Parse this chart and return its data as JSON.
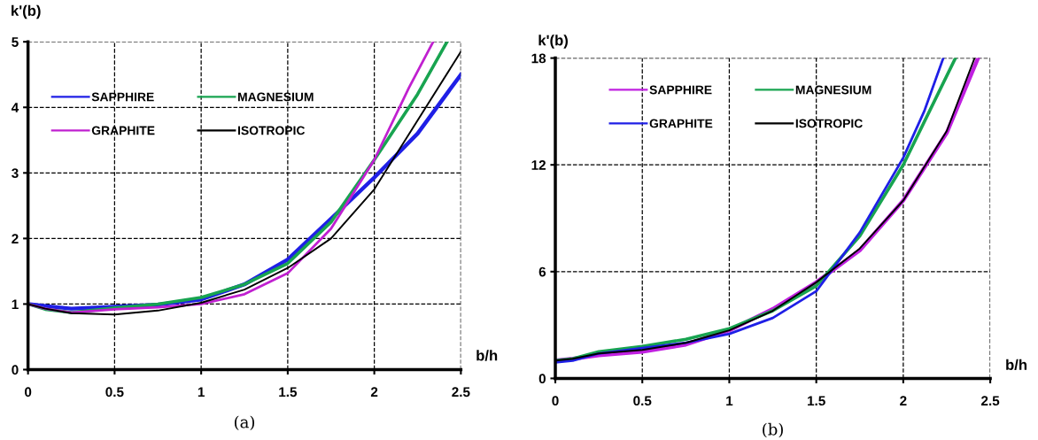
{
  "chart_data": [
    {
      "type": "line",
      "title": "(a)",
      "xlabel": "b/h",
      "ylabel": "k'(b)",
      "xlim": [
        0,
        2.5
      ],
      "ylim": [
        0,
        5
      ],
      "xticks": [
        0,
        0.5,
        1,
        1.5,
        2,
        2.5
      ],
      "yticks": [
        0,
        1,
        2,
        3,
        4,
        5
      ],
      "grid": true,
      "legend": "top left",
      "line_style": "solid",
      "marker": "none",
      "x": [
        0,
        0.1,
        0.25,
        0.5,
        0.75,
        1.0,
        1.25,
        1.5,
        1.75,
        2.0,
        2.25,
        2.5
      ],
      "series": [
        {
          "name": "SAPPHIRE",
          "color": "#1f1fe6",
          "values": [
            1,
            0.97,
            0.93,
            0.96,
            0.99,
            1.07,
            1.3,
            1.68,
            2.3,
            2.93,
            3.6,
            4.5
          ]
        },
        {
          "name": "MAGNESIUM",
          "color": "#18a450",
          "x": [
            0,
            0.1,
            0.25,
            0.5,
            0.75,
            1.0,
            1.25,
            1.5,
            1.75,
            2.0,
            2.25,
            2.42
          ],
          "values": [
            1,
            0.92,
            0.87,
            0.94,
            1.0,
            1.1,
            1.3,
            1.62,
            2.25,
            3.2,
            4.2,
            5.0
          ]
        },
        {
          "name": "GRAPHITE",
          "color": "#c020d0",
          "x": [
            0,
            0.1,
            0.25,
            0.5,
            0.75,
            1.0,
            1.25,
            1.5,
            1.75,
            2.0,
            2.2,
            2.34
          ],
          "values": [
            1,
            0.93,
            0.87,
            0.92,
            0.95,
            1.0,
            1.15,
            1.47,
            2.15,
            3.2,
            4.3,
            5.0
          ]
        },
        {
          "name": "ISOTROPIC",
          "color": "#000000",
          "values": [
            1,
            0.93,
            0.86,
            0.84,
            0.9,
            1.02,
            1.22,
            1.55,
            2.0,
            2.75,
            3.8,
            4.85
          ]
        }
      ]
    },
    {
      "type": "line",
      "title": "(b)",
      "xlabel": "b/h",
      "ylabel": "k'(b)",
      "xlim": [
        0,
        2.5
      ],
      "ylim": [
        0,
        18
      ],
      "xticks": [
        0,
        0.5,
        1,
        1.5,
        2,
        2.5
      ],
      "yticks": [
        0,
        6,
        12,
        18
      ],
      "grid": true,
      "legend": "top",
      "line_style": "solid",
      "marker": "none",
      "series": [
        {
          "name": "SAPPHIRE",
          "color": "#c020e0",
          "x": [
            0,
            0.1,
            0.25,
            0.5,
            0.75,
            1.0,
            1.25,
            1.5,
            1.75,
            2.0,
            2.25,
            2.43
          ],
          "values": [
            1.0,
            1.1,
            1.3,
            1.5,
            1.9,
            2.7,
            3.9,
            5.4,
            7.2,
            10.0,
            13.8,
            18
          ]
        },
        {
          "name": "MAGNESIUM",
          "color": "#18a450",
          "x": [
            0,
            0.1,
            0.25,
            0.5,
            0.75,
            1.0,
            1.25,
            1.5,
            1.75,
            2.0,
            2.15,
            2.3
          ],
          "values": [
            1,
            1.1,
            1.5,
            1.8,
            2.2,
            2.8,
            3.8,
            5.2,
            8.0,
            12.0,
            15.0,
            18
          ]
        },
        {
          "name": "GRAPHITE",
          "color": "#1f1fe6",
          "x": [
            0,
            0.1,
            0.25,
            0.5,
            0.75,
            1.0,
            1.25,
            1.5,
            1.75,
            2.0,
            2.12,
            2.23
          ],
          "values": [
            0.9,
            1.0,
            1.4,
            1.7,
            2.0,
            2.5,
            3.4,
            4.9,
            8.2,
            12.4,
            15,
            18
          ]
        },
        {
          "name": "ISOTROPIC",
          "color": "#000000",
          "x": [
            0,
            0.1,
            0.25,
            0.5,
            0.75,
            1.0,
            1.25,
            1.5,
            1.75,
            2.0,
            2.25,
            2.41
          ],
          "values": [
            1,
            1.1,
            1.4,
            1.6,
            2.0,
            2.7,
            3.8,
            5.4,
            7.3,
            10.0,
            13.9,
            18
          ]
        }
      ]
    }
  ]
}
